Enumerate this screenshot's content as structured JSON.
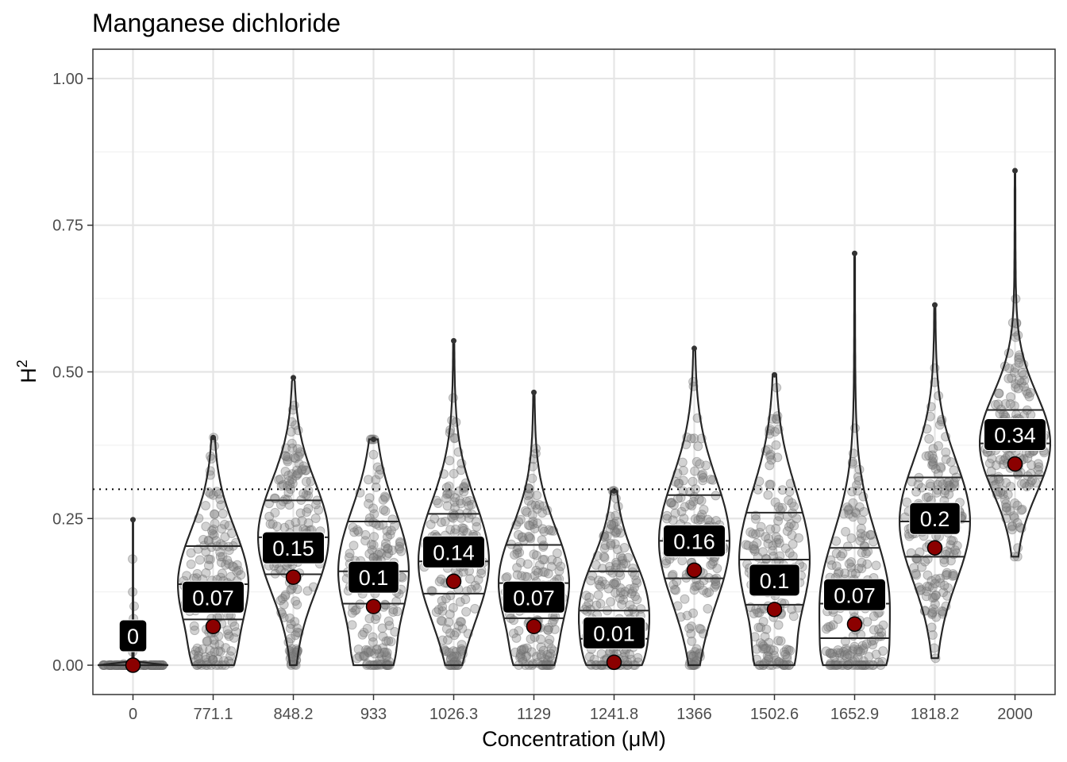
{
  "chart_data": {
    "type": "violin",
    "title": "Manganese dichloride",
    "xlabel": "Concentration (μM)",
    "ylabel": "H",
    "ylabel_superscript": "2",
    "ylim": [
      -0.05,
      1.05
    ],
    "y_ticks": [
      0.0,
      0.25,
      0.5,
      0.75,
      1.0
    ],
    "y_tick_labels": [
      "0.00",
      "0.25",
      "0.50",
      "0.75",
      "1.00"
    ],
    "reference_line": 0.3,
    "categories": [
      "0",
      "771.1",
      "848.2",
      "933",
      "1026.3",
      "1129",
      "1241.8",
      "1366",
      "1502.6",
      "1652.9",
      "1818.2",
      "2000"
    ],
    "means": [
      0.0,
      0.066,
      0.15,
      0.1,
      0.143,
      0.066,
      0.005,
      0.162,
      0.095,
      0.07,
      0.2,
      0.343
    ],
    "mean_labels": [
      "0",
      "0.07",
      "0.15",
      "0.1",
      "0.14",
      "0.07",
      "0.01",
      "0.16",
      "0.1",
      "0.07",
      "0.2",
      "0.34"
    ],
    "quartiles": [
      [
        0.0,
        0.0,
        0.0
      ],
      [
        0.078,
        0.138,
        0.203
      ],
      [
        0.155,
        0.218,
        0.281
      ],
      [
        0.105,
        0.16,
        0.245
      ],
      [
        0.122,
        0.177,
        0.258
      ],
      [
        0.08,
        0.14,
        0.205
      ],
      [
        0.045,
        0.093,
        0.16
      ],
      [
        0.148,
        0.212,
        0.29
      ],
      [
        0.103,
        0.18,
        0.26
      ],
      [
        0.046,
        0.105,
        0.2
      ],
      [
        0.185,
        0.245,
        0.32
      ],
      [
        0.323,
        0.378,
        0.435
      ]
    ],
    "ranges": [
      [
        0.0,
        0.248
      ],
      [
        0.0,
        0.388
      ],
      [
        0.0,
        0.49
      ],
      [
        0.0,
        0.385
      ],
      [
        0.0,
        0.553
      ],
      [
        0.0,
        0.465
      ],
      [
        0.0,
        0.297
      ],
      [
        0.0,
        0.54
      ],
      [
        0.0,
        0.495
      ],
      [
        0.0,
        0.702
      ],
      [
        0.012,
        0.614
      ],
      [
        0.185,
        0.843
      ]
    ],
    "colors": {
      "violin_stroke": "#262626",
      "point_fill": "#7f7f7f",
      "mean_fill": "#8b0000",
      "label_bg": "#000000",
      "label_text": "#ffffff",
      "grid_major": "#e5e5e5",
      "grid_minor": "#f2f2f2"
    }
  }
}
